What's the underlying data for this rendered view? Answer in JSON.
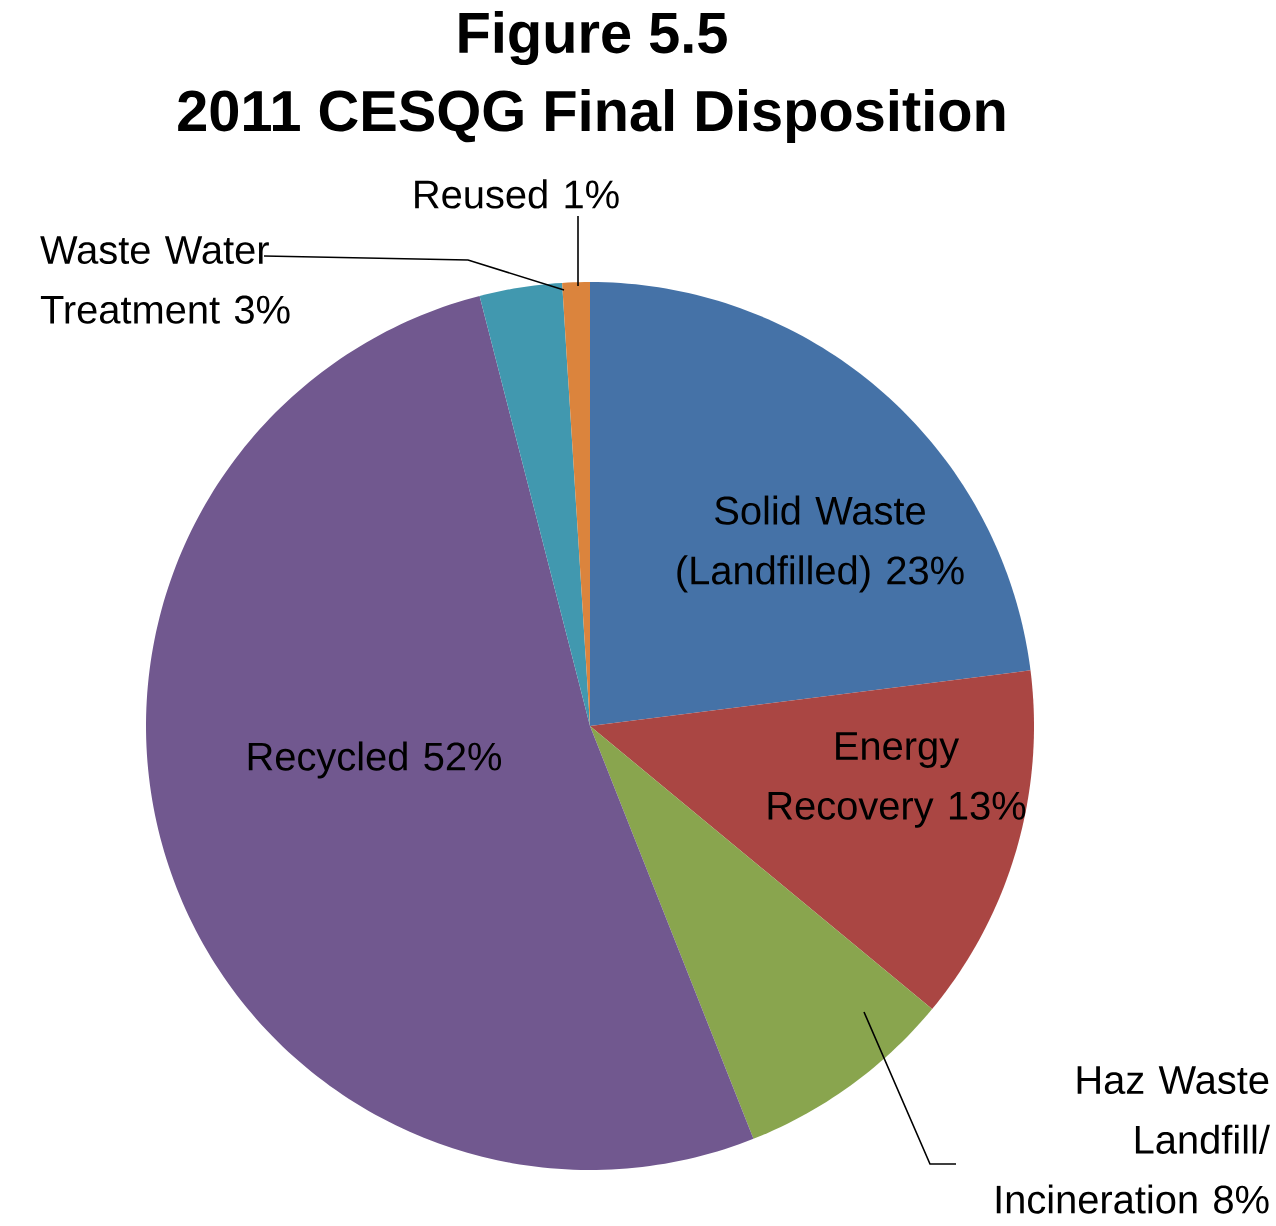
{
  "chart_data": {
    "type": "pie",
    "title": "Figure 5.5",
    "subtitle": "2011 CESQG Final Disposition",
    "categories": [
      "Solid Waste (Landfilled)",
      "Energy Recovery",
      "Haz Waste Landfill/ Incineration",
      "Recycled",
      "Waste Water Treatment",
      "Reused"
    ],
    "values": [
      23,
      13,
      8,
      52,
      3,
      1
    ],
    "value_labels": [
      "23%",
      "13%",
      "8%",
      "52%",
      "3%",
      "1%"
    ],
    "colors": [
      "#4572a7",
      "#aa4643",
      "#89a54e",
      "#71588f",
      "#4198af",
      "#db843d"
    ]
  }
}
